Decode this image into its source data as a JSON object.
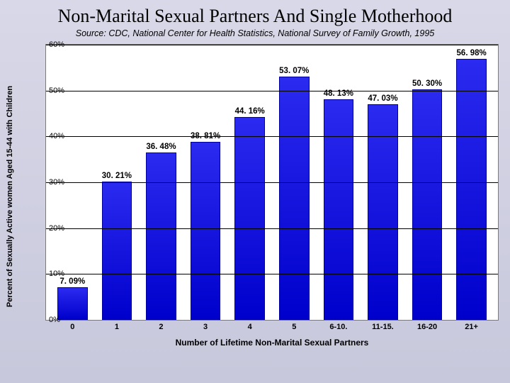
{
  "title": "Non-Marital Sexual Partners And Single Motherhood",
  "subtitle": "Source: CDC, National Center for Health Statistics, National Survey of Family Growth, 1995",
  "chart": {
    "type": "bar",
    "ylabel": "Percent of Sexually Active women Aged 15-44 with Children",
    "xlabel": "Number of Lifetime Non-Marital Sexual Partners",
    "ymax": 60,
    "ytick_step": 10,
    "yticks": [
      "0%",
      "10%",
      "20%",
      "30%",
      "40%",
      "50%",
      "60%"
    ],
    "categories": [
      "0",
      "1",
      "2",
      "3",
      "4",
      "5",
      "6-10.",
      "11-15.",
      "16-20",
      "21+"
    ],
    "values": [
      7.09,
      30.21,
      36.48,
      38.81,
      44.16,
      53.07,
      48.13,
      47.03,
      50.3,
      56.98
    ],
    "value_labels": [
      "7. 09%",
      "30. 21%",
      "36. 48%",
      "38. 81%",
      "44. 16%",
      "53. 07%",
      "48. 13%",
      "47. 03%",
      "50. 30%",
      "56. 98%"
    ],
    "bar_color": "#1a1af0",
    "bar_border": "#0000a0",
    "background_color": "#ffffff",
    "grid_color": "#000000",
    "title_fontsize": 26,
    "subtitle_fontsize": 12.5,
    "label_fontsize": 11,
    "bar_width": 0.68
  }
}
